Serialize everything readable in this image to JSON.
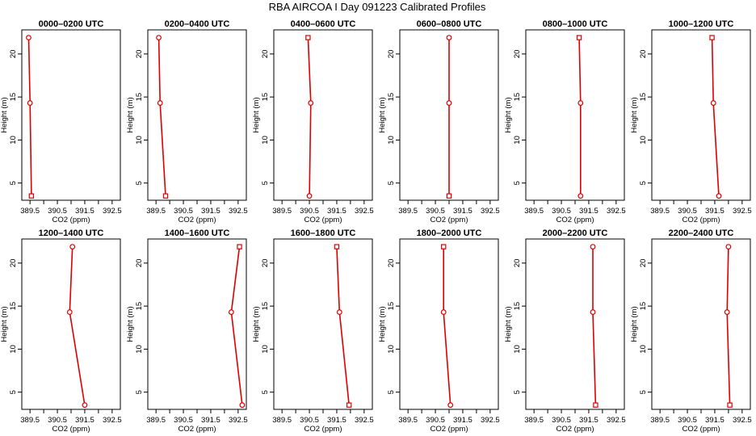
{
  "figure": {
    "title": "RBA AIRCOA I  Day 091223  Calibrated Profiles"
  },
  "colors": {
    "line": "#dd0000",
    "axis": "#000000"
  },
  "chart_data": [
    {
      "type": "line",
      "title": "0000–0200 UTC",
      "xlabel": "CO2 (ppm)",
      "ylabel": "Height (m)",
      "xlim": [
        389.2,
        392.8
      ],
      "ylim": [
        3.0,
        22.8
      ],
      "x_ticks": [
        "389.5",
        "390.5",
        "391.5",
        "392.5"
      ],
      "x_ticks_minor": [
        "390",
        "391",
        "392"
      ],
      "y_ticks": [
        5,
        10,
        15,
        20
      ],
      "series": [
        {
          "x": [
            389.55,
            389.5,
            389.45
          ],
          "y": [
            3.5,
            14.3,
            21.9
          ],
          "markers": [
            "square",
            "circle",
            "circle"
          ]
        }
      ]
    },
    {
      "type": "line",
      "title": "0200–0400 UTC",
      "xlabel": "CO2 (ppm)",
      "ylabel": "Height (m)",
      "xlim": [
        389.2,
        392.8
      ],
      "ylim": [
        3.0,
        22.8
      ],
      "x_ticks": [
        "389.5",
        "390.5",
        "391.5",
        "392.5"
      ],
      "x_ticks_minor": [
        "390",
        "391",
        "392"
      ],
      "y_ticks": [
        5,
        10,
        15,
        20
      ],
      "series": [
        {
          "x": [
            389.85,
            389.65,
            389.6
          ],
          "y": [
            3.5,
            14.3,
            21.9
          ],
          "markers": [
            "square",
            "circle",
            "circle"
          ]
        }
      ]
    },
    {
      "type": "line",
      "title": "0400–0600 UTC",
      "xlabel": "CO2 (ppm)",
      "ylabel": "Height (m)",
      "xlim": [
        389.2,
        392.8
      ],
      "ylim": [
        3.0,
        22.8
      ],
      "x_ticks": [
        "389.5",
        "390.5",
        "391.5",
        "392.5"
      ],
      "x_ticks_minor": [
        "390",
        "391",
        "392"
      ],
      "y_ticks": [
        5,
        10,
        15,
        20
      ],
      "series": [
        {
          "x": [
            390.5,
            390.55,
            390.45
          ],
          "y": [
            3.5,
            14.3,
            21.9
          ],
          "markers": [
            "circle",
            "circle",
            "square"
          ]
        }
      ]
    },
    {
      "type": "line",
      "title": "0600–0800 UTC",
      "xlabel": "CO2 (ppm)",
      "ylabel": "Height (m)",
      "xlim": [
        389.2,
        392.8
      ],
      "ylim": [
        3.0,
        22.8
      ],
      "x_ticks": [
        "389.5",
        "390.5",
        "391.5",
        "392.5"
      ],
      "x_ticks_minor": [
        "390",
        "391",
        "392"
      ],
      "y_ticks": [
        5,
        10,
        15,
        20
      ],
      "series": [
        {
          "x": [
            391.0,
            391.0,
            391.0
          ],
          "y": [
            3.5,
            14.3,
            21.9
          ],
          "markers": [
            "square",
            "circle",
            "circle"
          ]
        }
      ]
    },
    {
      "type": "line",
      "title": "0800–1000 UTC",
      "xlabel": "CO2 (ppm)",
      "ylabel": "Height (m)",
      "xlim": [
        389.2,
        392.8
      ],
      "ylim": [
        3.0,
        22.8
      ],
      "x_ticks": [
        "389.5",
        "390.5",
        "391.5",
        "392.5"
      ],
      "x_ticks_minor": [
        "390",
        "391",
        "392"
      ],
      "y_ticks": [
        5,
        10,
        15,
        20
      ],
      "series": [
        {
          "x": [
            391.2,
            391.2,
            391.15
          ],
          "y": [
            3.5,
            14.3,
            21.9
          ],
          "markers": [
            "circle",
            "circle",
            "square"
          ]
        }
      ]
    },
    {
      "type": "line",
      "title": "1000–1200 UTC",
      "xlabel": "CO2 (ppm)",
      "ylabel": "Height (m)",
      "xlim": [
        389.2,
        392.8
      ],
      "ylim": [
        3.0,
        22.8
      ],
      "x_ticks": [
        "389.5",
        "390.5",
        "391.5",
        "392.5"
      ],
      "x_ticks_minor": [
        "390",
        "391",
        "392"
      ],
      "y_ticks": [
        5,
        10,
        15,
        20
      ],
      "series": [
        {
          "x": [
            391.65,
            391.45,
            391.4
          ],
          "y": [
            3.5,
            14.3,
            21.9
          ],
          "markers": [
            "circle",
            "circle",
            "square"
          ]
        }
      ]
    },
    {
      "type": "line",
      "title": "1200–1400 UTC",
      "xlabel": "CO2 (ppm)",
      "ylabel": "Height (m)",
      "xlim": [
        389.2,
        392.8
      ],
      "ylim": [
        3.0,
        22.8
      ],
      "x_ticks": [
        "389.5",
        "390.5",
        "391.5",
        "392.5"
      ],
      "x_ticks_minor": [
        "390",
        "391",
        "392"
      ],
      "y_ticks": [
        5,
        10,
        15,
        20
      ],
      "series": [
        {
          "x": [
            391.5,
            390.95,
            391.05
          ],
          "y": [
            3.5,
            14.3,
            21.9
          ],
          "markers": [
            "circle",
            "circle",
            "circle"
          ]
        }
      ]
    },
    {
      "type": "line",
      "title": "1400–1600 UTC",
      "xlabel": "CO2 (ppm)",
      "ylabel": "Height (m)",
      "xlim": [
        389.2,
        392.8
      ],
      "ylim": [
        3.0,
        22.8
      ],
      "x_ticks": [
        "389.5",
        "390.5",
        "391.5",
        "392.5"
      ],
      "x_ticks_minor": [
        "390",
        "391",
        "392"
      ],
      "y_ticks": [
        5,
        10,
        15,
        20
      ],
      "series": [
        {
          "x": [
            392.65,
            392.25,
            392.55
          ],
          "y": [
            3.5,
            14.3,
            21.9
          ],
          "markers": [
            "circle",
            "circle",
            "square"
          ]
        }
      ]
    },
    {
      "type": "line",
      "title": "1600–1800 UTC",
      "xlabel": "CO2 (ppm)",
      "ylabel": "Height (m)",
      "xlim": [
        389.2,
        392.8
      ],
      "ylim": [
        3.0,
        22.8
      ],
      "x_ticks": [
        "389.5",
        "390.5",
        "391.5",
        "392.5"
      ],
      "x_ticks_minor": [
        "390",
        "391",
        "392"
      ],
      "y_ticks": [
        5,
        10,
        15,
        20
      ],
      "series": [
        {
          "x": [
            391.95,
            391.6,
            391.5
          ],
          "y": [
            3.5,
            14.3,
            21.9
          ],
          "markers": [
            "square",
            "circle",
            "square"
          ]
        }
      ]
    },
    {
      "type": "line",
      "title": "1800–2000 UTC",
      "xlabel": "CO2 (ppm)",
      "ylabel": "Height (m)",
      "xlim": [
        389.2,
        392.8
      ],
      "ylim": [
        3.0,
        22.8
      ],
      "x_ticks": [
        "389.5",
        "390.5",
        "391.5",
        "392.5"
      ],
      "x_ticks_minor": [
        "390",
        "391",
        "392"
      ],
      "y_ticks": [
        5,
        10,
        15,
        20
      ],
      "series": [
        {
          "x": [
            391.05,
            390.8,
            390.8
          ],
          "y": [
            3.5,
            14.3,
            21.9
          ],
          "markers": [
            "circle",
            "circle",
            "square"
          ]
        }
      ]
    },
    {
      "type": "line",
      "title": "2000–2200 UTC",
      "xlabel": "CO2 (ppm)",
      "ylabel": "Height (m)",
      "xlim": [
        389.2,
        392.8
      ],
      "ylim": [
        3.0,
        22.8
      ],
      "x_ticks": [
        "389.5",
        "390.5",
        "391.5",
        "392.5"
      ],
      "x_ticks_minor": [
        "390",
        "391",
        "392"
      ],
      "y_ticks": [
        5,
        10,
        15,
        20
      ],
      "series": [
        {
          "x": [
            391.75,
            391.65,
            391.65
          ],
          "y": [
            3.5,
            14.3,
            21.9
          ],
          "markers": [
            "square",
            "circle",
            "circle"
          ]
        }
      ]
    },
    {
      "type": "line",
      "title": "2200–2400 UTC",
      "xlabel": "CO2 (ppm)",
      "ylabel": "Height (m)",
      "xlim": [
        389.2,
        392.8
      ],
      "ylim": [
        3.0,
        22.8
      ],
      "x_ticks": [
        "389.5",
        "390.5",
        "391.5",
        "392.5"
      ],
      "x_ticks_minor": [
        "390",
        "391",
        "392"
      ],
      "y_ticks": [
        5,
        10,
        15,
        20
      ],
      "series": [
        {
          "x": [
            392.05,
            391.95,
            392.0
          ],
          "y": [
            3.5,
            14.3,
            21.9
          ],
          "markers": [
            "square",
            "circle",
            "circle"
          ]
        }
      ]
    }
  ]
}
